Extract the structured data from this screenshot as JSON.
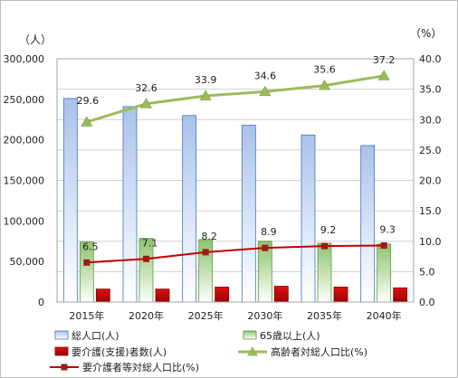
{
  "chart_data": {
    "type": "bar",
    "categories": [
      "2015年",
      "2020年",
      "2025年",
      "2030年",
      "2035年",
      "2040年"
    ],
    "left_axis": {
      "unit": "（人）",
      "min": 0,
      "max": 300000,
      "step": 50000,
      "tick_labels": [
        "0",
        "50,000",
        "100,000",
        "150,000",
        "200,000",
        "250,000",
        "300,000"
      ]
    },
    "right_axis": {
      "unit": "（%）",
      "min": 0,
      "max": 40,
      "step": 5,
      "tick_labels": [
        "0.0",
        "5.0",
        "10.0",
        "15.0",
        "20.0",
        "25.0",
        "30.0",
        "35.0",
        "40.0"
      ]
    },
    "series": [
      {
        "name": "総人口(人)",
        "kind": "bar",
        "axis": "left",
        "color": "#4472c4",
        "values": [
          251000,
          241000,
          230000,
          218000,
          206000,
          193000
        ]
      },
      {
        "name": "65歳以上(人)",
        "kind": "bar",
        "axis": "left",
        "color": "#70ad47",
        "values": [
          74000,
          78500,
          77000,
          75000,
          72500,
          71500
        ]
      },
      {
        "name": "要介護(支援)者数(人)",
        "kind": "bar",
        "axis": "left",
        "color": "#c00000",
        "values": [
          16000,
          16000,
          18500,
          19500,
          18500,
          17500
        ]
      },
      {
        "name": "高齢者対総人口比(%)",
        "kind": "line",
        "axis": "right",
        "color": "#9bbb59",
        "marker": "triangle",
        "values": [
          29.6,
          32.6,
          33.9,
          34.6,
          35.6,
          37.2
        ],
        "labels": [
          "29.6",
          "32.6",
          "33.9",
          "34.6",
          "35.6",
          "37.2"
        ]
      },
      {
        "name": "要介護者等対総人口比(%)",
        "kind": "line",
        "axis": "right",
        "color": "#c00000",
        "marker_color": "#9b1b1b",
        "marker": "square",
        "values": [
          6.5,
          7.1,
          8.2,
          8.9,
          9.2,
          9.3
        ],
        "labels": [
          "6.5",
          "7.1",
          "8.2",
          "8.9",
          "9.2",
          "9.3"
        ]
      }
    ],
    "legend": {
      "placement": "bottom",
      "items": [
        "総人口(人)",
        "65歳以上(人)",
        "要介護(支援)者数(人)",
        "高齢者対総人口比(%)",
        "要介護者等対総人口比(%)"
      ]
    }
  }
}
